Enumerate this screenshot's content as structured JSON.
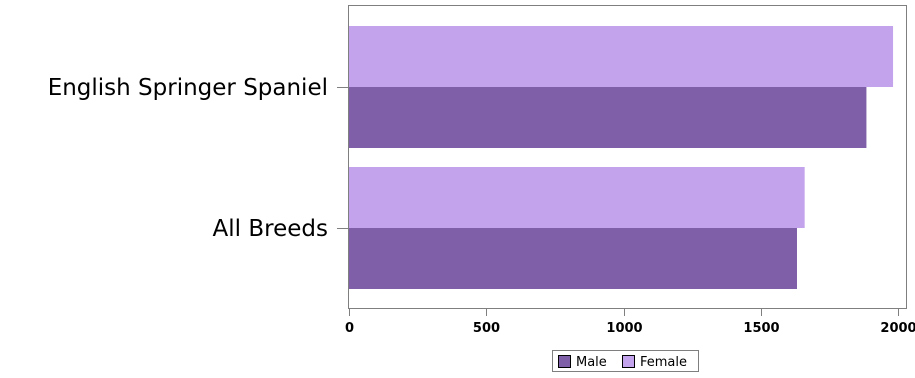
{
  "chart_data": {
    "type": "bar",
    "orientation": "horizontal",
    "categories": [
      "English Springer Spaniel",
      "All Breeds"
    ],
    "series": [
      {
        "name": "Male",
        "values": [
          1885,
          1632
        ],
        "color": "#7f5fa8"
      },
      {
        "name": "Female",
        "values": [
          1982,
          1660
        ],
        "color": "#c3a3eb"
      }
    ],
    "xlim": [
      0,
      2000
    ],
    "x_ticks": [
      0,
      500,
      1000,
      1500,
      2000
    ],
    "x_tick_labels": [
      "0",
      "500",
      "1000",
      "1500",
      "2000"
    ],
    "grid": false,
    "legend_position": "bottom-center"
  },
  "colors": {
    "frame": "#7f7f7f",
    "legend_frame": "#7f7f7f"
  }
}
